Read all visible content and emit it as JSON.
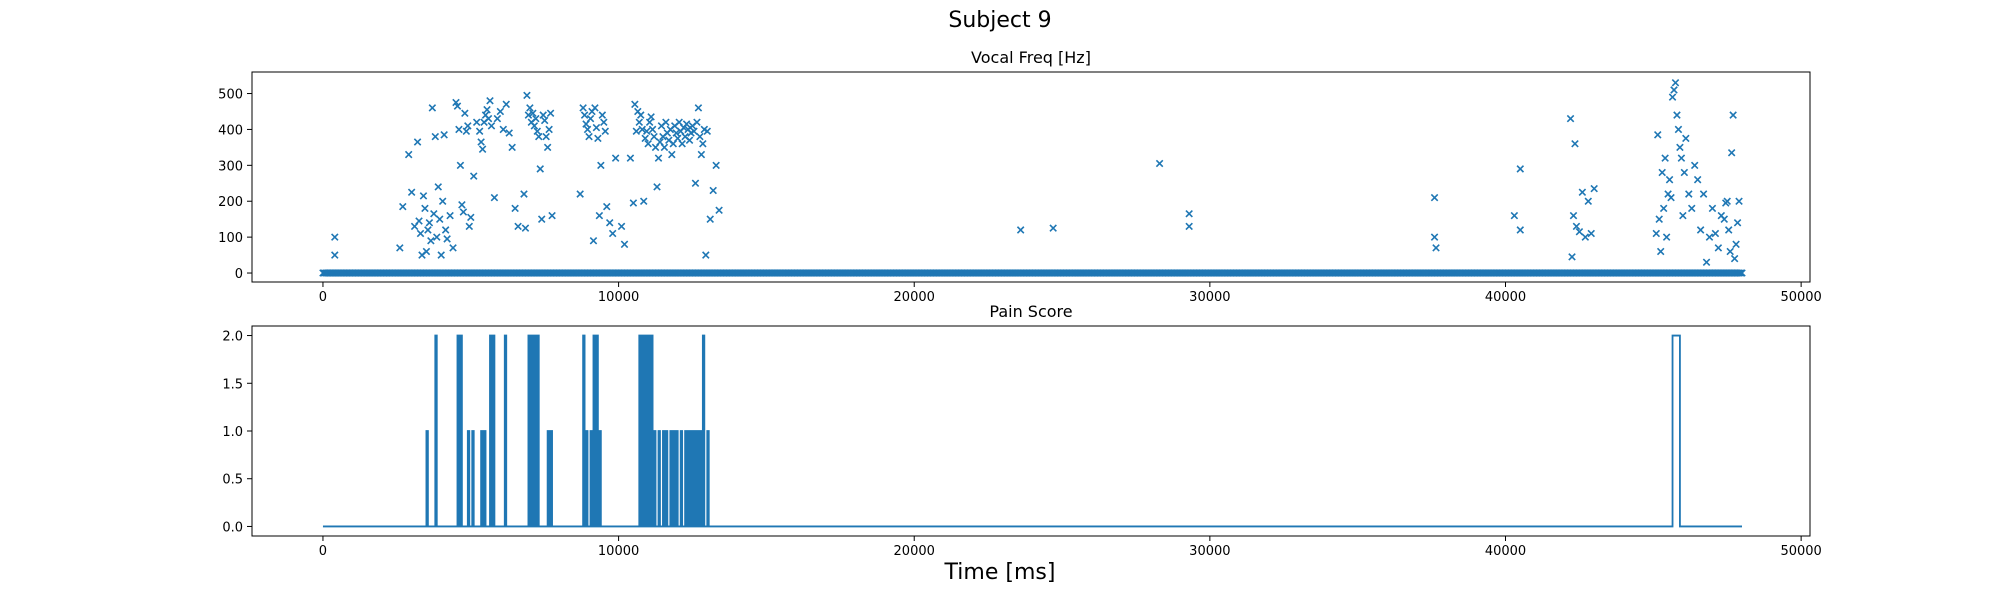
{
  "figure": {
    "suptitle": "Subject 9",
    "xlabel": "Time [ms]"
  },
  "chart_data": [
    {
      "type": "scatter",
      "title": "Vocal Freq [Hz]",
      "marker": "x",
      "color": "#1f77b4",
      "xlim": [
        -2400,
        50300
      ],
      "ylim": [
        -25,
        560
      ],
      "xticks": [
        0,
        10000,
        20000,
        30000,
        40000,
        50000
      ],
      "yticks": [
        0,
        100,
        200,
        300,
        400,
        500
      ],
      "baseline": {
        "y": 0,
        "x_start": 0,
        "x_end": 48000,
        "step": 50
      },
      "points": [
        [
          400,
          100
        ],
        [
          400,
          50
        ],
        [
          2600,
          70
        ],
        [
          2700,
          185
        ],
        [
          2900,
          330
        ],
        [
          3000,
          225
        ],
        [
          3100,
          130
        ],
        [
          3200,
          365
        ],
        [
          3250,
          145
        ],
        [
          3300,
          110
        ],
        [
          3350,
          50
        ],
        [
          3400,
          215
        ],
        [
          3450,
          180
        ],
        [
          3500,
          60
        ],
        [
          3550,
          120
        ],
        [
          3600,
          140
        ],
        [
          3650,
          90
        ],
        [
          3700,
          460
        ],
        [
          3750,
          165
        ],
        [
          3800,
          380
        ],
        [
          3850,
          100
        ],
        [
          3900,
          240
        ],
        [
          3950,
          150
        ],
        [
          4000,
          50
        ],
        [
          4050,
          200
        ],
        [
          4100,
          385
        ],
        [
          4150,
          120
        ],
        [
          4200,
          95
        ],
        [
          4300,
          160
        ],
        [
          4400,
          70
        ],
        [
          4500,
          475
        ],
        [
          4550,
          465
        ],
        [
          4600,
          400
        ],
        [
          4650,
          300
        ],
        [
          4700,
          190
        ],
        [
          4750,
          170
        ],
        [
          4800,
          445
        ],
        [
          4850,
          395
        ],
        [
          4900,
          410
        ],
        [
          4950,
          130
        ],
        [
          5000,
          155
        ],
        [
          5100,
          270
        ],
        [
          5200,
          420
        ],
        [
          5300,
          395
        ],
        [
          5350,
          365
        ],
        [
          5400,
          345
        ],
        [
          5450,
          420
        ],
        [
          5500,
          440
        ],
        [
          5550,
          455
        ],
        [
          5600,
          430
        ],
        [
          5650,
          480
        ],
        [
          5700,
          410
        ],
        [
          5800,
          210
        ],
        [
          5900,
          430
        ],
        [
          6000,
          450
        ],
        [
          6100,
          400
        ],
        [
          6200,
          470
        ],
        [
          6300,
          390
        ],
        [
          6400,
          350
        ],
        [
          6500,
          180
        ],
        [
          6600,
          130
        ],
        [
          6800,
          220
        ],
        [
          6850,
          125
        ],
        [
          6900,
          495
        ],
        [
          6950,
          440
        ],
        [
          7000,
          460
        ],
        [
          7050,
          420
        ],
        [
          7100,
          445
        ],
        [
          7150,
          410
        ],
        [
          7200,
          430
        ],
        [
          7250,
          395
        ],
        [
          7300,
          380
        ],
        [
          7350,
          290
        ],
        [
          7400,
          150
        ],
        [
          7450,
          440
        ],
        [
          7500,
          425
        ],
        [
          7550,
          380
        ],
        [
          7600,
          350
        ],
        [
          7650,
          400
        ],
        [
          7700,
          445
        ],
        [
          7750,
          160
        ],
        [
          8700,
          220
        ],
        [
          8800,
          460
        ],
        [
          8850,
          440
        ],
        [
          8900,
          415
        ],
        [
          8950,
          400
        ],
        [
          9000,
          380
        ],
        [
          9050,
          430
        ],
        [
          9100,
          450
        ],
        [
          9150,
          90
        ],
        [
          9200,
          460
        ],
        [
          9250,
          405
        ],
        [
          9300,
          375
        ],
        [
          9350,
          160
        ],
        [
          9400,
          300
        ],
        [
          9450,
          440
        ],
        [
          9500,
          420
        ],
        [
          9550,
          395
        ],
        [
          9600,
          185
        ],
        [
          9700,
          140
        ],
        [
          9800,
          110
        ],
        [
          9900,
          320
        ],
        [
          10100,
          130
        ],
        [
          10200,
          80
        ],
        [
          10400,
          320
        ],
        [
          10500,
          195
        ],
        [
          10550,
          470
        ],
        [
          10600,
          395
        ],
        [
          10650,
          450
        ],
        [
          10700,
          420
        ],
        [
          10750,
          440
        ],
        [
          10800,
          400
        ],
        [
          10850,
          200
        ],
        [
          10900,
          375
        ],
        [
          10950,
          395
        ],
        [
          11000,
          360
        ],
        [
          11050,
          420
        ],
        [
          11100,
          435
        ],
        [
          11150,
          400
        ],
        [
          11200,
          380
        ],
        [
          11250,
          350
        ],
        [
          11300,
          240
        ],
        [
          11350,
          320
        ],
        [
          11400,
          365
        ],
        [
          11450,
          410
        ],
        [
          11500,
          380
        ],
        [
          11550,
          350
        ],
        [
          11600,
          420
        ],
        [
          11650,
          390
        ],
        [
          11700,
          370
        ],
        [
          11750,
          400
        ],
        [
          11800,
          330
        ],
        [
          11850,
          360
        ],
        [
          11900,
          410
        ],
        [
          11950,
          390
        ],
        [
          12000,
          375
        ],
        [
          12050,
          420
        ],
        [
          12100,
          395
        ],
        [
          12150,
          360
        ],
        [
          12200,
          405
        ],
        [
          12250,
          380
        ],
        [
          12300,
          415
        ],
        [
          12350,
          400
        ],
        [
          12400,
          370
        ],
        [
          12450,
          390
        ],
        [
          12500,
          410
        ],
        [
          12550,
          395
        ],
        [
          12600,
          250
        ],
        [
          12650,
          420
        ],
        [
          12700,
          460
        ],
        [
          12750,
          380
        ],
        [
          12800,
          330
        ],
        [
          12850,
          360
        ],
        [
          12900,
          400
        ],
        [
          12950,
          50
        ],
        [
          13000,
          395
        ],
        [
          13100,
          150
        ],
        [
          13200,
          230
        ],
        [
          13300,
          300
        ],
        [
          13400,
          175
        ],
        [
          23600,
          120
        ],
        [
          24700,
          125
        ],
        [
          28300,
          305
        ],
        [
          29300,
          165
        ],
        [
          29300,
          130
        ],
        [
          37600,
          210
        ],
        [
          37600,
          100
        ],
        [
          37650,
          70
        ],
        [
          40300,
          160
        ],
        [
          40500,
          120
        ],
        [
          40500,
          290
        ],
        [
          42200,
          430
        ],
        [
          42250,
          45
        ],
        [
          42300,
          160
        ],
        [
          42350,
          360
        ],
        [
          42400,
          130
        ],
        [
          42500,
          115
        ],
        [
          42600,
          225
        ],
        [
          42700,
          100
        ],
        [
          42800,
          200
        ],
        [
          42900,
          110
        ],
        [
          43000,
          235
        ],
        [
          45100,
          110
        ],
        [
          45150,
          385
        ],
        [
          45200,
          150
        ],
        [
          45250,
          60
        ],
        [
          45300,
          280
        ],
        [
          45350,
          180
        ],
        [
          45400,
          320
        ],
        [
          45450,
          100
        ],
        [
          45500,
          220
        ],
        [
          45550,
          260
        ],
        [
          45600,
          210
        ],
        [
          45650,
          490
        ],
        [
          45700,
          510
        ],
        [
          45750,
          530
        ],
        [
          45800,
          440
        ],
        [
          45850,
          400
        ],
        [
          45900,
          350
        ],
        [
          45950,
          320
        ],
        [
          46000,
          160
        ],
        [
          46050,
          280
        ],
        [
          46100,
          375
        ],
        [
          46200,
          220
        ],
        [
          46300,
          180
        ],
        [
          46400,
          300
        ],
        [
          46500,
          260
        ],
        [
          46600,
          120
        ],
        [
          46700,
          220
        ],
        [
          46800,
          30
        ],
        [
          46900,
          100
        ],
        [
          47000,
          180
        ],
        [
          47100,
          110
        ],
        [
          47200,
          70
        ],
        [
          47300,
          160
        ],
        [
          47400,
          150
        ],
        [
          47450,
          195
        ],
        [
          47500,
          200
        ],
        [
          47550,
          120
        ],
        [
          47600,
          60
        ],
        [
          47650,
          335
        ],
        [
          47700,
          440
        ],
        [
          47750,
          40
        ],
        [
          47800,
          80
        ],
        [
          47850,
          140
        ],
        [
          47900,
          200
        ]
      ]
    },
    {
      "type": "line",
      "title": "Pain Score",
      "color": "#1f77b4",
      "xlim": [
        -2400,
        50300
      ],
      "ylim": [
        -0.1,
        2.1
      ],
      "xticks": [
        0,
        10000,
        20000,
        30000,
        40000,
        50000
      ],
      "yticks": [
        0.0,
        0.5,
        1.0,
        1.5,
        2.0
      ],
      "ytick_labels": [
        "0.0",
        "0.5",
        "1.0",
        "1.5",
        "2.0"
      ],
      "x_range": [
        0,
        48000
      ],
      "pulses": [
        [
          3500,
          3550,
          1
        ],
        [
          3800,
          3850,
          2
        ],
        [
          4550,
          4600,
          2
        ],
        [
          4650,
          4700,
          2
        ],
        [
          4900,
          4950,
          1
        ],
        [
          5050,
          5100,
          1
        ],
        [
          5350,
          5400,
          1
        ],
        [
          5450,
          5500,
          1
        ],
        [
          5650,
          5700,
          2
        ],
        [
          5750,
          5800,
          2
        ],
        [
          6150,
          6200,
          2
        ],
        [
          6950,
          7000,
          2
        ],
        [
          7050,
          7100,
          2
        ],
        [
          7150,
          7200,
          2
        ],
        [
          7250,
          7300,
          2
        ],
        [
          7600,
          7650,
          1
        ],
        [
          7700,
          7750,
          1
        ],
        [
          8800,
          8850,
          2
        ],
        [
          8900,
          8950,
          1
        ],
        [
          9050,
          9100,
          1
        ],
        [
          9150,
          9200,
          2
        ],
        [
          9250,
          9300,
          2
        ],
        [
          9350,
          9400,
          1
        ],
        [
          10700,
          10750,
          2
        ],
        [
          10800,
          10850,
          2
        ],
        [
          10900,
          10950,
          2
        ],
        [
          11000,
          11050,
          2
        ],
        [
          11100,
          11150,
          2
        ],
        [
          11200,
          11250,
          1
        ],
        [
          11350,
          11400,
          1
        ],
        [
          11500,
          11550,
          1
        ],
        [
          11600,
          11650,
          1
        ],
        [
          11750,
          11800,
          1
        ],
        [
          11850,
          11900,
          1
        ],
        [
          11950,
          12000,
          1
        ],
        [
          12100,
          12150,
          1
        ],
        [
          12250,
          12300,
          1
        ],
        [
          12350,
          12400,
          1
        ],
        [
          12450,
          12500,
          1
        ],
        [
          12550,
          12600,
          1
        ],
        [
          12650,
          12700,
          1
        ],
        [
          12750,
          12800,
          1
        ],
        [
          12850,
          12900,
          2
        ],
        [
          13000,
          13050,
          1
        ],
        [
          45650,
          45900,
          2
        ]
      ]
    }
  ]
}
